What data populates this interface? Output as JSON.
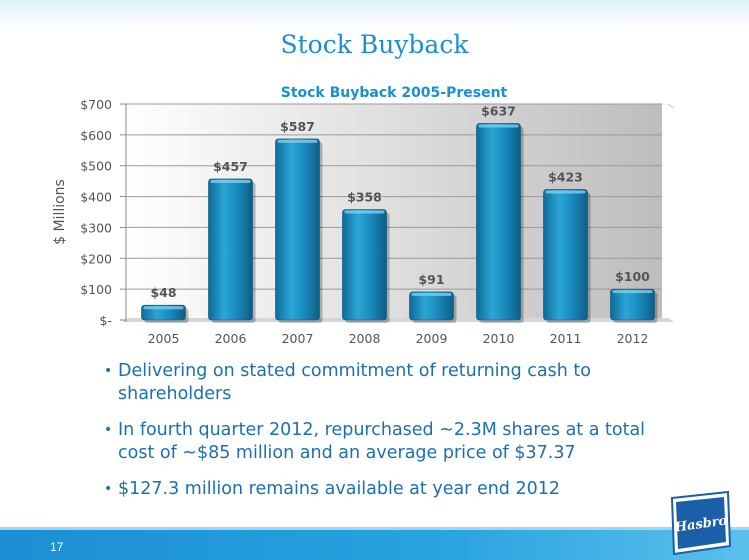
{
  "slide": {
    "title": "Stock Buyback",
    "page_number": "17"
  },
  "chart_data": {
    "type": "bar",
    "title": "Stock Buyback 2005-Present",
    "ylabel": "$ Millions",
    "xlabel": "",
    "categories": [
      "2005",
      "2006",
      "2007",
      "2008",
      "2009",
      "2010",
      "2011",
      "2012"
    ],
    "values": [
      48,
      457,
      587,
      358,
      91,
      637,
      423,
      100
    ],
    "data_labels": [
      "$48",
      "$457",
      "$587",
      "$358",
      "$91",
      "$637",
      "$423",
      "$100"
    ],
    "y_ticks": [
      0,
      100,
      200,
      300,
      400,
      500,
      600,
      700
    ],
    "y_tick_labels": [
      "$-",
      "$100",
      "$200",
      "$300",
      "$400",
      "$500",
      "$600",
      "$700"
    ],
    "ylim": [
      0,
      700
    ],
    "grid": true,
    "bar_color": "#1a8bbd",
    "title_color": "#1a8fd3"
  },
  "bullets": [
    "Delivering on stated commitment of returning cash to shareholders",
    "In fourth quarter 2012, repurchased ~2.3M shares at a total cost of ~$85 million and an average price of $37.37",
    "$127.3 million remains available at year end 2012"
  ],
  "logo": {
    "text": "Hasbro",
    "icon": "hasbro-logo",
    "color": "#1a5fa8"
  }
}
